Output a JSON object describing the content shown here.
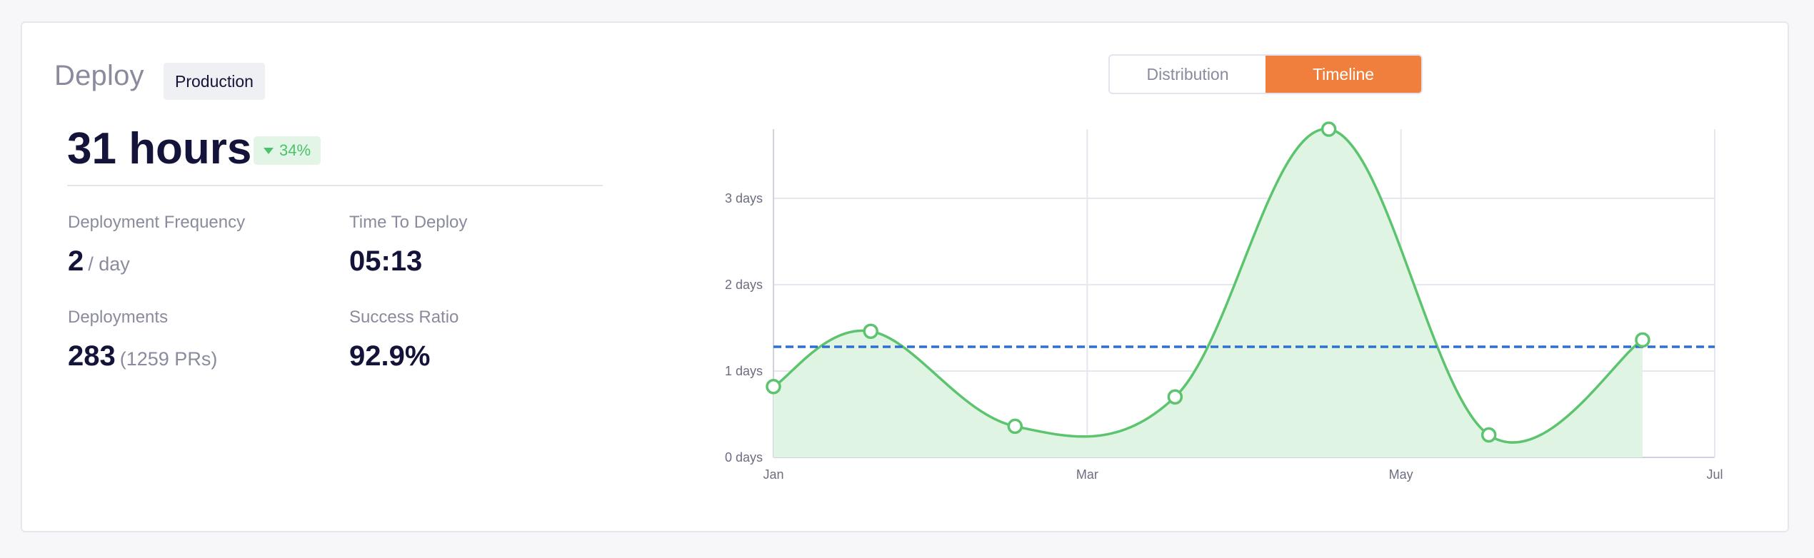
{
  "header": {
    "title": "Deploy",
    "environment": "Production"
  },
  "summary": {
    "headline": "31 hours",
    "change": "34%",
    "change_direction": "down",
    "change_color": "#4cc36b"
  },
  "metrics": [
    {
      "label": "Deployment Frequency",
      "value": "2",
      "unit": "/ day"
    },
    {
      "label": "Time To Deploy",
      "value": "05:13",
      "unit": ""
    },
    {
      "label": "Deployments",
      "value": "283",
      "unit": "(1259 PRs)"
    },
    {
      "label": "Success Ratio",
      "value": "92.9%",
      "unit": ""
    }
  ],
  "view_toggle": {
    "options": [
      "Distribution",
      "Timeline"
    ],
    "selected": "Timeline",
    "accent_color": "#f07e3c"
  },
  "chart_data": {
    "type": "area",
    "x_ticks": [
      "Jan",
      "Mar",
      "May",
      "Jul"
    ],
    "y_ticks": [
      "0 days",
      "1 days",
      "2 days",
      "3 days"
    ],
    "ylim": [
      0,
      3.8
    ],
    "xlim": [
      0,
      6
    ],
    "x": [
      0,
      0.62,
      1.54,
      2.56,
      3.54,
      4.56,
      5.54
    ],
    "values": [
      0.82,
      1.46,
      0.36,
      0.7,
      3.8,
      0.26,
      1.36
    ],
    "average": 1.28,
    "line_color": "#5cc46e",
    "fill_color": "#e0f4e3",
    "average_color": "#2f6fd1",
    "grid": true
  }
}
